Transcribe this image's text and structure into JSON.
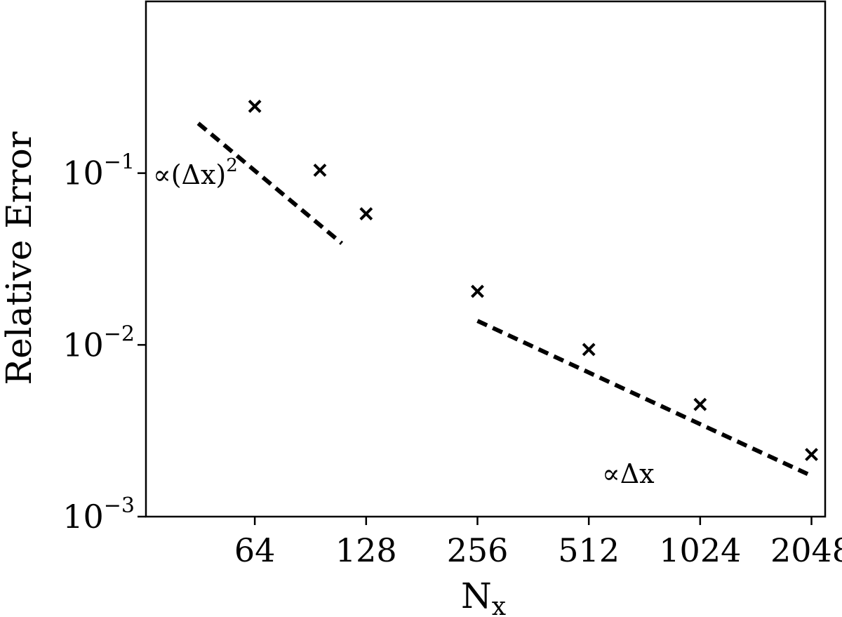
{
  "chart_data": {
    "type": "scatter",
    "title": "",
    "xlabel": "N",
    "xlabel_sub": "x",
    "ylabel": "Relative Error",
    "x_scale": "log2",
    "y_scale": "log10",
    "xlim": [
      32.5,
      2230
    ],
    "ylim": [
      0.001,
      1.0
    ],
    "grid": false,
    "x_ticks": [
      {
        "value": 64,
        "label": "64"
      },
      {
        "value": 128,
        "label": "128"
      },
      {
        "value": 256,
        "label": "256"
      },
      {
        "value": 512,
        "label": "512"
      },
      {
        "value": 1024,
        "label": "1024"
      },
      {
        "value": 2048,
        "label": "2048"
      }
    ],
    "y_ticks": [
      {
        "value": 0.1,
        "base": "10",
        "exp": "−1"
      },
      {
        "value": 0.01,
        "base": "10",
        "exp": "−2"
      },
      {
        "value": 0.001,
        "base": "10",
        "exp": "−3"
      }
    ],
    "series": [
      {
        "marker": "x",
        "points": [
          {
            "x": 64,
            "y": 0.245
          },
          {
            "x": 96,
            "y": 0.104
          },
          {
            "x": 128,
            "y": 0.058
          },
          {
            "x": 256,
            "y": 0.0205
          },
          {
            "x": 512,
            "y": 0.0094
          },
          {
            "x": 1024,
            "y": 0.0045
          },
          {
            "x": 2048,
            "y": 0.0023
          }
        ]
      }
    ],
    "reference_lines": [
      {
        "label": "∝(Δx)",
        "label_sup": "2",
        "x": [
          45,
          110
        ],
        "y": [
          0.195,
          0.039
        ],
        "style": "dashed"
      },
      {
        "label": "∝Δx",
        "label_sup": "",
        "x": [
          256,
          2000
        ],
        "y": [
          0.0138,
          0.00177
        ],
        "style": "dashed"
      }
    ],
    "color": "#000000"
  }
}
